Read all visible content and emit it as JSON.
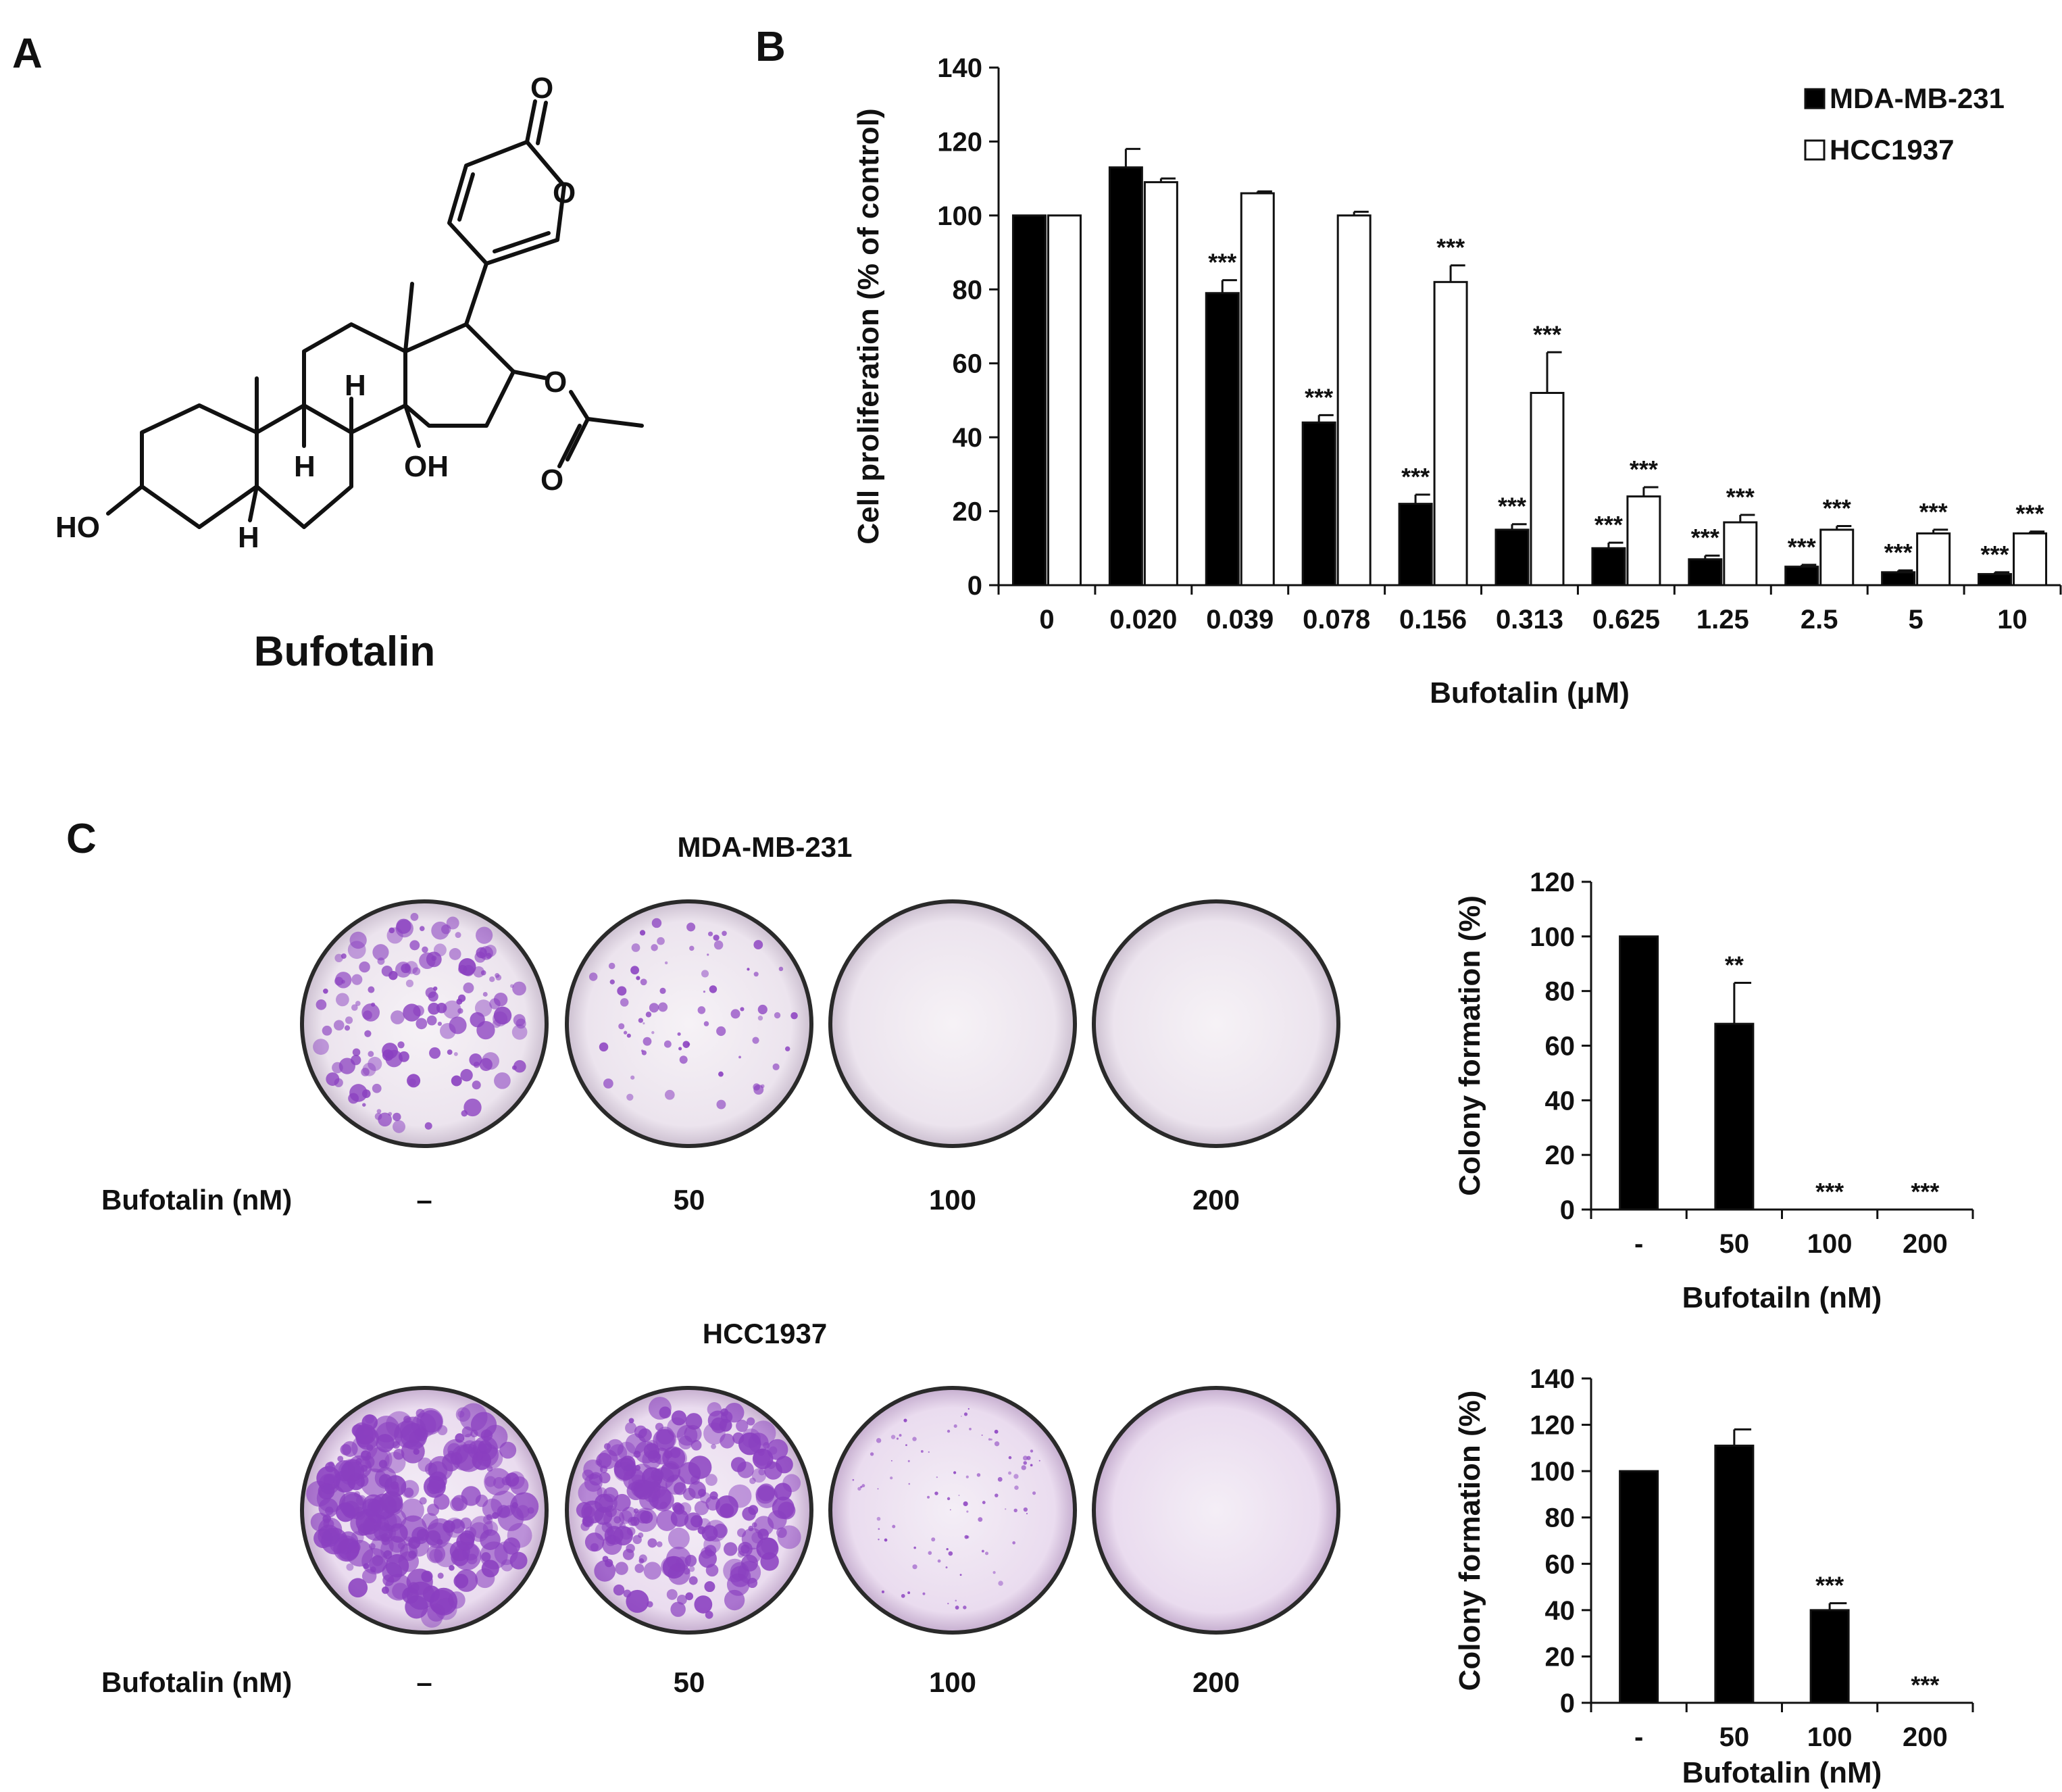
{
  "panels": {
    "a": {
      "letter": "A",
      "compound_name": "Bufotalin",
      "atom_labels": {
        "carbonyl_o": "O",
        "ring_o": "O",
        "ester_o": "O",
        "acetyl_o": "O",
        "h_top": "H",
        "h_mid": "H",
        "h_low": "H",
        "oh_c14": "OH",
        "ho_c3": "HO"
      }
    },
    "b": {
      "letter": "B"
    },
    "c": {
      "letter": "C",
      "row1": {
        "cell_line": "MDA-MB-231",
        "treatment_label": "Bufotalin (nM)",
        "doses": [
          "–",
          "50",
          "100",
          "200"
        ]
      },
      "row2": {
        "cell_line": "HCC1937",
        "treatment_label": "Bufotalin (nM)",
        "doses": [
          "–",
          "50",
          "100",
          "200"
        ]
      }
    }
  },
  "colors": {
    "bar_filled": "#000000",
    "bar_open": "#ffffff",
    "dish_stain": "#8a3fc0",
    "dish_background": "#f3eef4"
  },
  "chart_data": [
    {
      "id": "proliferation",
      "type": "bar",
      "title": "",
      "xlabel": "Bufotalin (μM)",
      "ylabel": "Cell proliferation (% of control)",
      "ylim": [
        0,
        140
      ],
      "yticks": [
        "0",
        "20",
        "40",
        "60",
        "80",
        "100",
        "120",
        "140"
      ],
      "categories": [
        "0",
        "0.020",
        "0.039",
        "0.078",
        "0.156",
        "0.313",
        "0.625",
        "1.25",
        "2.5",
        "5",
        "10"
      ],
      "legend_position": "top-right",
      "grid": false,
      "series": [
        {
          "name": "MDA-MB-231",
          "fill": "filled",
          "values": [
            100,
            113,
            79,
            44,
            22,
            15,
            10,
            7,
            5,
            3.5,
            3
          ],
          "errors": [
            0,
            5,
            3.5,
            2,
            2.5,
            1.5,
            1.5,
            1,
            0.5,
            0.5,
            0.5
          ],
          "annotations": [
            "",
            "",
            "***",
            "***",
            "***",
            "***",
            "***",
            "***",
            "***",
            "***",
            "***"
          ]
        },
        {
          "name": "HCC1937",
          "fill": "open",
          "values": [
            100,
            109,
            106,
            100,
            82,
            52,
            24,
            17,
            15,
            14,
            14
          ],
          "errors": [
            0,
            1,
            0.5,
            1,
            4.5,
            11,
            2.5,
            2,
            1,
            1,
            0.5
          ],
          "annotations": [
            "",
            "",
            "",
            "",
            "***",
            "***",
            "***",
            "***",
            "***",
            "***",
            "***"
          ]
        }
      ]
    },
    {
      "id": "colony_mda",
      "type": "bar",
      "title": "",
      "xlabel": "Bufotailn (nM)",
      "ylabel": "Colony formation (%)",
      "ylim": [
        0,
        120
      ],
      "yticks": [
        "0",
        "20",
        "40",
        "60",
        "80",
        "100",
        "120"
      ],
      "categories": [
        "-",
        "50",
        "100",
        "200"
      ],
      "grid": false,
      "series": [
        {
          "name": "",
          "fill": "filled",
          "values": [
            100,
            68,
            0,
            0
          ],
          "errors": [
            0,
            15,
            0,
            0
          ],
          "annotations": [
            "",
            "**",
            "***",
            "***"
          ]
        }
      ]
    },
    {
      "id": "colony_hcc",
      "type": "bar",
      "title": "",
      "xlabel": "Bufotalin (nM)",
      "ylabel": "Colony formation (%)",
      "ylim": [
        0,
        140
      ],
      "yticks": [
        "0",
        "20",
        "40",
        "60",
        "80",
        "100",
        "120",
        "140"
      ],
      "categories": [
        "-",
        "50",
        "100",
        "200"
      ],
      "grid": false,
      "series": [
        {
          "name": "",
          "fill": "filled",
          "values": [
            100,
            111,
            40,
            0
          ],
          "errors": [
            0,
            7,
            3,
            0
          ],
          "annotations": [
            "",
            "",
            "***",
            "***"
          ]
        }
      ]
    }
  ]
}
